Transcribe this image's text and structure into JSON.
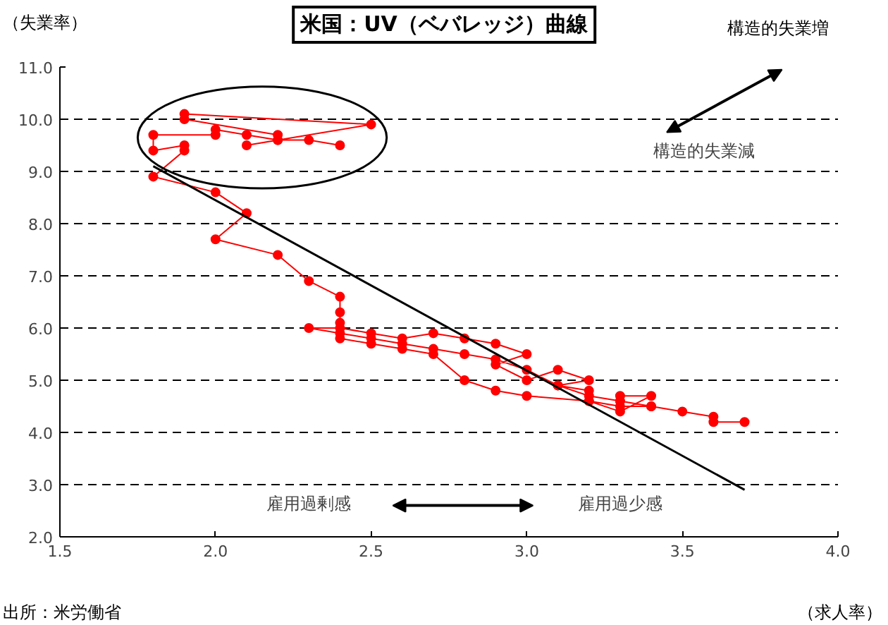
{
  "chart_data": {
    "type": "line",
    "title": "米国：UV（ベバレッジ）曲線",
    "xlabel": "（求人率）",
    "ylabel": "（失業率）",
    "xlim": [
      1.5,
      4.0
    ],
    "xticks": [
      {
        "value": 1.5,
        "label": "1.5"
      },
      {
        "value": 2.0,
        "label": "2.0"
      },
      {
        "value": 2.5,
        "label": "2.5"
      },
      {
        "value": 3.0,
        "label": "3.0"
      },
      {
        "value": 3.5,
        "label": "3.5"
      },
      {
        "value": 4.0,
        "label": "4.0"
      }
    ],
    "ylim": [
      2.0,
      11.0
    ],
    "yticks": [
      {
        "value": 2,
        "label": "2.0"
      },
      {
        "value": 3,
        "label": "3.0"
      },
      {
        "value": 4,
        "label": "4.0"
      },
      {
        "value": 5,
        "label": "5.0"
      },
      {
        "value": 6,
        "label": "6.0"
      },
      {
        "value": 7,
        "label": "7.0"
      },
      {
        "value": 8,
        "label": "8.0"
      },
      {
        "value": 9,
        "label": "9.0"
      },
      {
        "value": 10,
        "label": "10.0"
      },
      {
        "value": 11,
        "label": "11.0"
      }
    ],
    "grid": "y",
    "marker": "circle",
    "line_style": "solid",
    "series": [
      {
        "color": "#ff0000",
        "x": [
          3.7,
          3.6,
          3.6,
          3.5,
          3.4,
          3.3,
          3.3,
          3.4,
          3.3,
          3.2,
          3.2,
          3.1,
          3.2,
          3.1,
          3.0,
          2.9,
          3.0,
          2.9,
          2.8,
          2.7,
          2.6,
          2.5,
          2.4,
          2.3,
          2.4,
          2.5,
          2.6,
          2.7,
          2.8,
          2.9,
          3.0,
          3.1,
          3.2,
          3.3,
          3.4,
          3.3,
          3.2,
          3.0,
          2.9,
          2.8,
          2.7,
          2.6,
          2.5,
          2.4,
          2.4,
          2.4,
          2.4,
          2.3,
          2.2,
          2.0,
          2.1,
          2.0,
          1.8,
          1.9,
          1.9,
          1.8,
          1.8,
          2.0,
          2.0,
          2.1,
          2.2,
          2.2,
          1.9,
          1.9,
          2.5,
          2.1,
          2.2,
          2.3,
          2.4
        ],
        "values": [
          4.2,
          4.2,
          4.3,
          4.4,
          4.5,
          4.6,
          4.7,
          4.7,
          4.4,
          4.6,
          4.8,
          4.9,
          5.0,
          5.2,
          5.0,
          5.3,
          5.5,
          5.7,
          5.8,
          5.9,
          5.8,
          5.9,
          6.0,
          6.0,
          5.9,
          5.8,
          5.7,
          5.6,
          5.5,
          5.4,
          5.2,
          4.9,
          4.7,
          4.6,
          4.5,
          4.5,
          4.6,
          4.7,
          4.8,
          5.0,
          5.5,
          5.6,
          5.7,
          5.8,
          6.1,
          6.3,
          6.6,
          6.9,
          7.4,
          7.7,
          8.2,
          8.6,
          8.9,
          9.4,
          9.5,
          9.4,
          9.7,
          9.7,
          9.8,
          9.7,
          9.6,
          9.7,
          10.0,
          10.1,
          9.9,
          9.5,
          9.6,
          9.6,
          9.5
        ]
      },
      {
        "type": "line",
        "marker": "none",
        "color": "#000000",
        "x": [
          1.8,
          3.7
        ],
        "values": [
          9.1,
          2.9
        ]
      }
    ],
    "annotations": [
      "構造的失業増",
      "構造的失業減",
      "雇用過剰感",
      "雇用過少感",
      "出所：米労働省"
    ]
  }
}
